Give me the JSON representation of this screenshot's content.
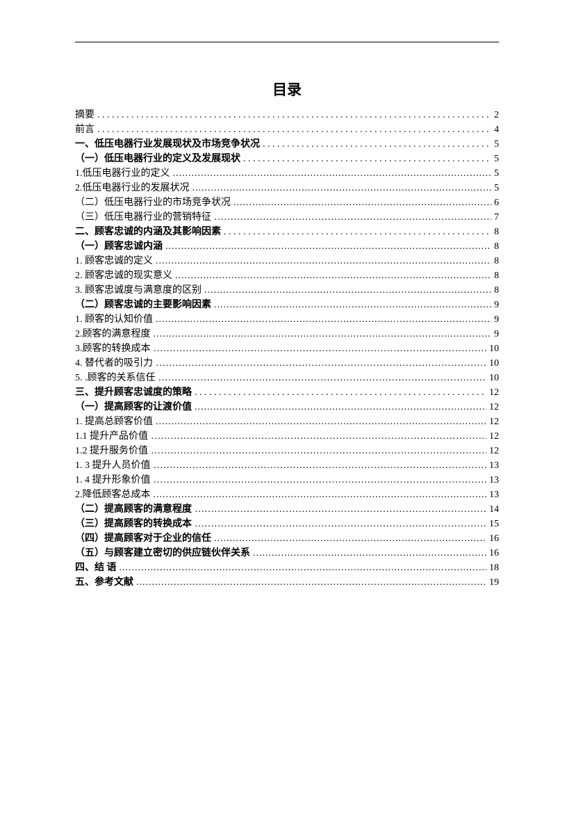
{
  "title": "目录",
  "entries": [
    {
      "label": "摘要",
      "page": "2",
      "bold": false,
      "leader": "wide"
    },
    {
      "label": "前言",
      "page": "4",
      "bold": false,
      "leader": "wide"
    },
    {
      "label": "一、低压电器行业发展现状及市场竞争状况",
      "page": "5",
      "bold": true,
      "leader": "wide"
    },
    {
      "label": "（一）低压电器行业的定义及发展现状",
      "page": "5",
      "bold": true,
      "leader": "wide"
    },
    {
      "label": "1.低压电器行业的定义",
      "page": "5",
      "bold": false,
      "leader": "tight",
      "page_space": true
    },
    {
      "label": "2.低压电器行业的发展状况",
      "page": "5",
      "bold": false,
      "leader": "tight"
    },
    {
      "label": "（二）低压电器行业的市场竞争状况",
      "page": "6",
      "bold": false,
      "leader": "tight"
    },
    {
      "label": "（三）低压电器行业的营销特征",
      "page": "7",
      "bold": false,
      "leader": "cn"
    },
    {
      "label": "二、顾客忠诚的内涵及其影响因素",
      "page": "8",
      "bold": true,
      "leader": "wide",
      "page_space": true
    },
    {
      "label": "（一）顾客忠诚内涵",
      "page": "8",
      "bold": true,
      "leader": "tight",
      "page_space": true
    },
    {
      "label": "1.  顾客忠诚的定义",
      "page": "8",
      "bold": false,
      "leader": "tight"
    },
    {
      "label": "2.  顾客忠诚的现实意义",
      "page": "8",
      "bold": false,
      "leader": "tight",
      "page_space": true
    },
    {
      "label": "3.  顾客忠诚度与满意度的区别",
      "page": "8",
      "bold": false,
      "leader": "tight",
      "page_space": true
    },
    {
      "label": "（二）顾客忠诚的主要影响因素",
      "page": "9",
      "bold": true,
      "leader": "tight",
      "page_space": true
    },
    {
      "label": "1.  顾客的认知价值",
      "page": "9",
      "bold": false,
      "leader": "tight",
      "page_space": true
    },
    {
      "label": "2.顾客的满意程度",
      "page": "9",
      "bold": false,
      "leader": "tight"
    },
    {
      "label": "3.顾客的转换成本",
      "page": "10",
      "bold": false,
      "leader": "cn"
    },
    {
      "label": "4.  替代者的吸引力",
      "page": "10",
      "bold": false,
      "leader": "cn"
    },
    {
      "label": "5. .顾客的关系信任",
      "page": "10",
      "bold": false,
      "leader": "cn"
    },
    {
      "label": "三、提升顾客忠诚度的策略",
      "page": "12",
      "bold": true,
      "leader": "wide",
      "page_space": true
    },
    {
      "label": "（一）提高顾客的让渡价值",
      "page": "12",
      "bold": true,
      "leader": "tight"
    },
    {
      "label": "1.  提高总顾客价值",
      "page": "12",
      "bold": false,
      "leader": "tight",
      "page_space": true
    },
    {
      "label": "1.1 提升产品价值",
      "page": "12",
      "bold": false,
      "leader": "cn"
    },
    {
      "label": "1.2 提升服务价值",
      "page": "12",
      "bold": false,
      "leader": "cn"
    },
    {
      "label": "1. 3 提升人员价值",
      "page": "13",
      "bold": false,
      "leader": "cn"
    },
    {
      "label": "1. 4 提升形象价值",
      "page": "13",
      "bold": false,
      "leader": "cn"
    },
    {
      "label": "2.降低顾客总成本",
      "page": "13",
      "bold": false,
      "leader": "tight"
    },
    {
      "label": "（二）提高顾客的满意程度",
      "page": "14",
      "bold": true,
      "leader": "cn"
    },
    {
      "label": "（三）提高顾客的转换成本",
      "page": "15",
      "bold": true,
      "leader": "cn"
    },
    {
      "label": "（四）提高顾客对于企业的信任",
      "page": "16",
      "bold": true,
      "leader": "tight"
    },
    {
      "label": "（五）与顾客建立密切的供应链伙伴关系",
      "page": "16",
      "bold": true,
      "leader": "tight"
    },
    {
      "label": "四、结 语",
      "page": "18",
      "bold": true,
      "leader": "tight"
    },
    {
      "label": "五、参考文献",
      "page": "19",
      "bold": true,
      "leader": "tight"
    }
  ]
}
